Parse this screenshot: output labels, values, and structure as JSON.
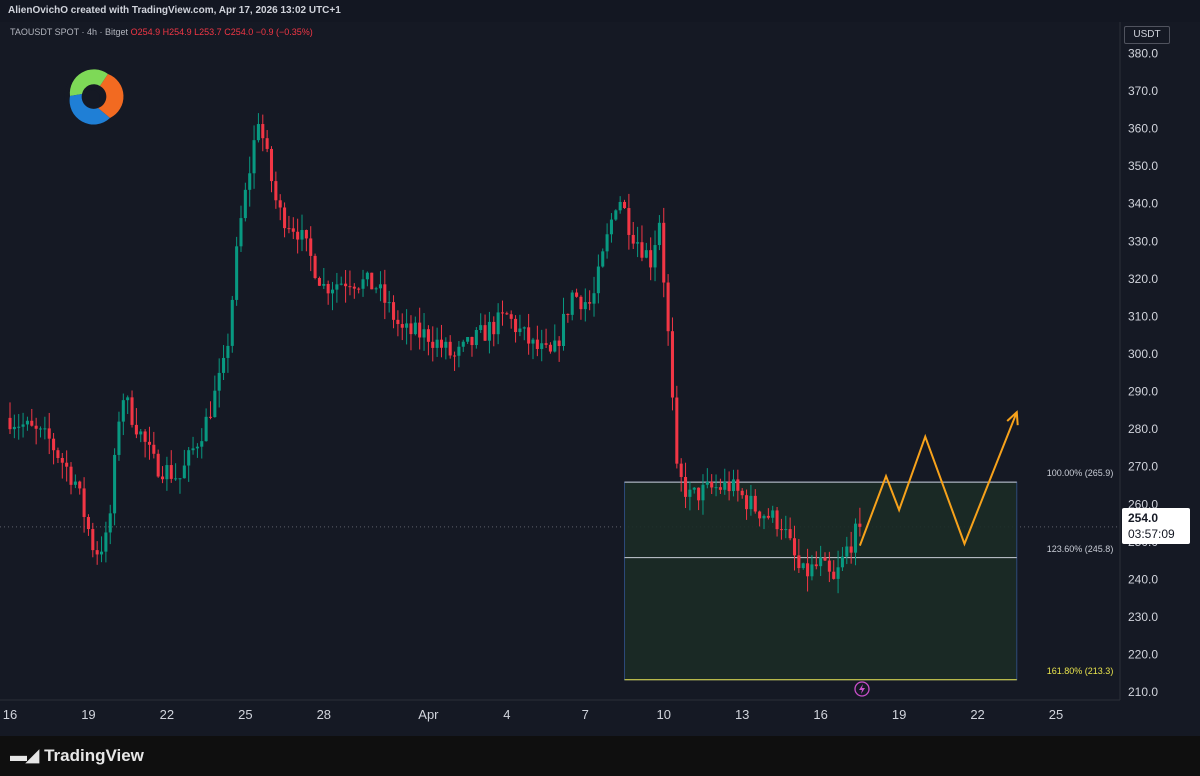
{
  "header": {
    "text": "AlienOvichO created with TradingView.com, Apr 17, 2026 13:02 UTC+1"
  },
  "legend": {
    "symbol": "TAOUSDT SPOT · 4h · Bitget",
    "open": "O254.9",
    "high": "H254.9",
    "low": "L253.7",
    "close": "C254.0",
    "change": "−0.9 (−0.35%)"
  },
  "price_scale": {
    "currency": "USDT"
  },
  "last_price": {
    "value": "254.0",
    "countdown": "03:57:09"
  },
  "footer": {
    "brand": "TradingView"
  },
  "icons": {
    "brand_logo": "tao-swirl-logo",
    "footer_logo": "tradingview-logo-icon",
    "event": "lightning-bolt-icon"
  },
  "colors": {
    "background": "#151924",
    "up_candle": "#089981",
    "down_candle": "#f23645",
    "projection": "#f7a21b",
    "fib_box_fill": "#1b2b26",
    "fib_161": "#e9e44d"
  },
  "chart_data": {
    "type": "candlestick",
    "timeframe": "4h",
    "ylim": [
      205,
      395
    ],
    "y_ticks": [
      210.0,
      220.0,
      230.0,
      240.0,
      250.0,
      260.0,
      270.0,
      280.0,
      290.0,
      300.0,
      310.0,
      320.0,
      330.0,
      340.0,
      350.0,
      360.0,
      370.0,
      380.0
    ],
    "x_tick_labels": [
      "16",
      "19",
      "22",
      "25",
      "28",
      "Apr",
      "4",
      "7",
      "10",
      "13",
      "16",
      "19",
      "22",
      "25"
    ],
    "grid": false,
    "legend_position": "top-left",
    "fib_levels": [
      {
        "label": "100.00% (265.9)",
        "value": 265.9
      },
      {
        "label": "123.60% (245.8)",
        "value": 245.8
      },
      {
        "label": "161.80% (213.3)",
        "value": 213.3
      }
    ],
    "projection_path": [
      {
        "x": "Apr 17 12:00",
        "y": 249.0
      },
      {
        "x": "Apr 18 12:00",
        "y": 267.5
      },
      {
        "x": "Apr 19 00:00",
        "y": 258.5
      },
      {
        "x": "Apr 20 00:00",
        "y": 278.0
      },
      {
        "x": "Apr 21 12:00",
        "y": 249.5
      },
      {
        "x": "Apr 23 12:00",
        "y": 284.5
      }
    ],
    "anchors": [
      {
        "date": "Mar 16 00:00",
        "price": 283
      },
      {
        "date": "Mar 17 12:00",
        "price": 277
      },
      {
        "date": "Mar 18 12:00",
        "price": 266
      },
      {
        "date": "Mar 19 06:00",
        "price": 247
      },
      {
        "date": "Mar 19 18:00",
        "price": 251
      },
      {
        "date": "Mar 20 06:00",
        "price": 290
      },
      {
        "date": "Mar 21 12:00",
        "price": 271
      },
      {
        "date": "Mar 22 12:00",
        "price": 267
      },
      {
        "date": "Mar 23 12:00",
        "price": 282
      },
      {
        "date": "Mar 24 06:00",
        "price": 298
      },
      {
        "date": "Mar 24 18:00",
        "price": 332
      },
      {
        "date": "Mar 25 12:00",
        "price": 363
      },
      {
        "date": "Mar 26 06:00",
        "price": 338
      },
      {
        "date": "Mar 27 00:00",
        "price": 333
      },
      {
        "date": "Mar 28 00:00",
        "price": 318
      },
      {
        "date": "Mar 29 00:00",
        "price": 320
      },
      {
        "date": "Mar 30 00:00",
        "price": 318
      },
      {
        "date": "Mar 31 00:00",
        "price": 306
      },
      {
        "date": "Apr 01 00:00",
        "price": 305
      },
      {
        "date": "Apr 02 00:00",
        "price": 299
      },
      {
        "date": "Apr 03 00:00",
        "price": 305
      },
      {
        "date": "Apr 04 00:00",
        "price": 310
      },
      {
        "date": "Apr 05 00:00",
        "price": 302
      },
      {
        "date": "Apr 05 18:00",
        "price": 299
      },
      {
        "date": "Apr 06 12:00",
        "price": 316
      },
      {
        "date": "Apr 07 06:00",
        "price": 313
      },
      {
        "date": "Apr 07 18:00",
        "price": 328
      },
      {
        "date": "Apr 08 06:00",
        "price": 343
      },
      {
        "date": "Apr 08 18:00",
        "price": 333
      },
      {
        "date": "Apr 09 12:00",
        "price": 325
      },
      {
        "date": "Apr 09 20:00",
        "price": 336
      },
      {
        "date": "Apr 10 04:00",
        "price": 305
      },
      {
        "date": "Apr 10 12:00",
        "price": 268
      },
      {
        "date": "Apr 11 00:00",
        "price": 262
      },
      {
        "date": "Apr 11 18:00",
        "price": 264
      },
      {
        "date": "Apr 12 12:00",
        "price": 265
      },
      {
        "date": "Apr 13 12:00",
        "price": 259
      },
      {
        "date": "Apr 14 12:00",
        "price": 255
      },
      {
        "date": "Apr 15 06:00",
        "price": 241
      },
      {
        "date": "Apr 16 00:00",
        "price": 244
      },
      {
        "date": "Apr 16 12:00",
        "price": 239
      },
      {
        "date": "Apr 17 00:00",
        "price": 248
      },
      {
        "date": "Apr 17 12:00",
        "price": 254
      }
    ],
    "last_value": 254.0
  }
}
